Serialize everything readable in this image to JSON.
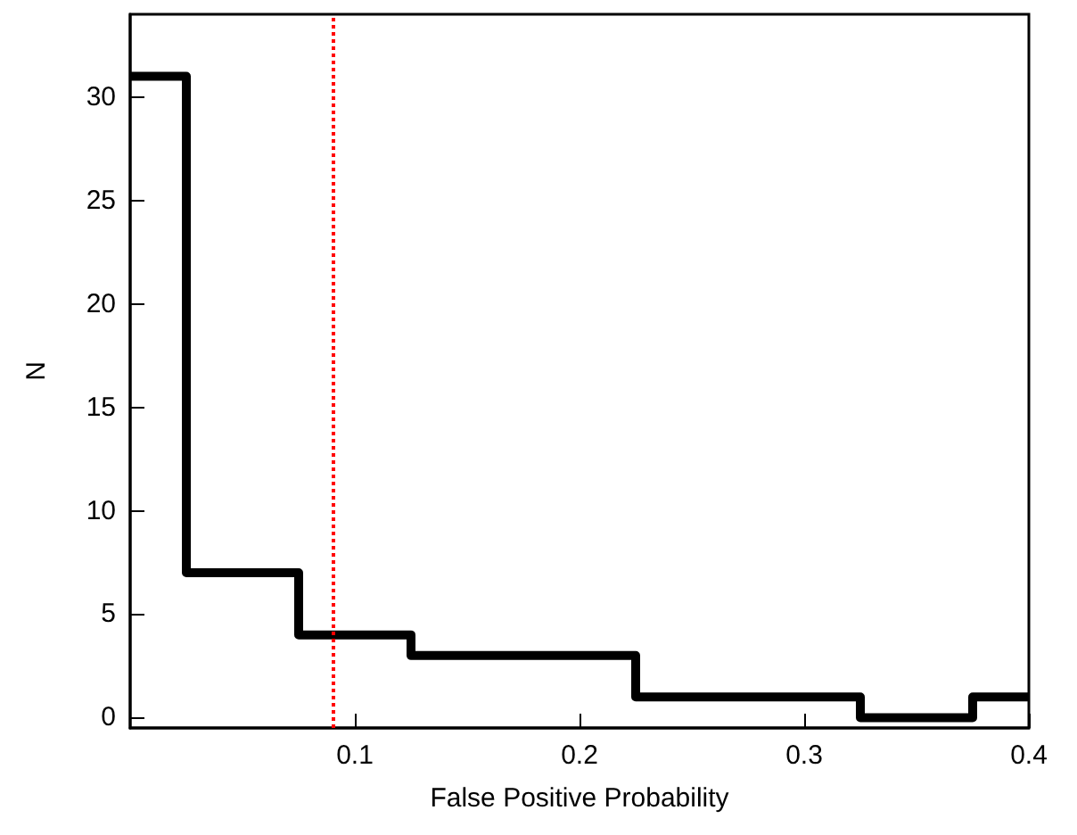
{
  "chart_data": {
    "type": "histogram",
    "xlabel": "False Positive Probability",
    "ylabel": "N",
    "bins": [
      0,
      0.025,
      0.075,
      0.125,
      0.175,
      0.225,
      0.275,
      0.325,
      0.375,
      0.4
    ],
    "values": [
      31,
      7,
      4,
      3,
      3,
      1,
      1,
      0,
      1
    ],
    "color": "#000000",
    "xlim": [
      0,
      0.4
    ],
    "xticks": [
      0.1,
      0.2,
      0.3,
      0.4
    ],
    "ylim": [
      -0.5,
      34
    ],
    "yticks": [
      0,
      5,
      10,
      15,
      20,
      25,
      30
    ],
    "ref_lines": [
      {
        "axis": "x",
        "value": 0.089,
        "color": "#ff0000",
        "line_style": "dotted"
      }
    ]
  }
}
